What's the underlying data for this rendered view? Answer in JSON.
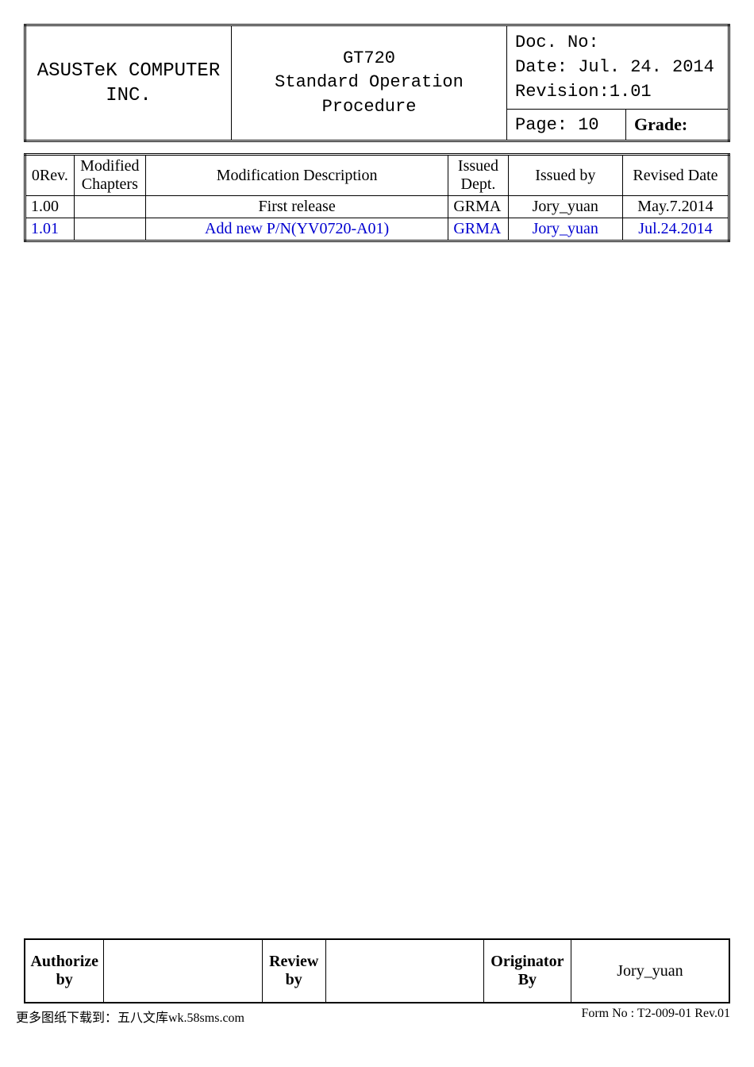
{
  "header": {
    "company_line1": "ASUSTeK COMPUTER",
    "company_line2": "INC.",
    "title_line1": "GT720",
    "title_line2": "Standard Operation Procedure",
    "doc_no_label": "Doc. No:",
    "date_line": "Date: Jul. 24. 2014",
    "revision_line": "Revision:1.01",
    "page_label": "Page: 10",
    "grade_label": "Grade:"
  },
  "rev_headers": {
    "rev": "0Rev.",
    "modchap": "Modified Chapters",
    "desc": "Modification Description",
    "dept": "Issued Dept.",
    "by": "Issued by",
    "date": "Revised Date"
  },
  "rev_rows": [
    {
      "rev": "1.00",
      "modchap": "",
      "desc": "First release",
      "dept": "GRMA",
      "by": "Jory_yuan",
      "date": "May.7.2014",
      "color": "#000000"
    },
    {
      "rev": "1.01",
      "modchap": "",
      "desc": "Add new P/N(YV0720-A01)",
      "dept": "GRMA",
      "by": "Jory_yuan",
      "date": "Jul.24.2014",
      "color": "#0000d0"
    }
  ],
  "footer": {
    "auth_label": "Authorize by",
    "auth_val": "",
    "review_label": "Review by",
    "review_val": "",
    "orig_label": "Originator By",
    "orig_val": "Jory_yuan"
  },
  "bottom": {
    "left": "更多图纸下载到：五八文库wk.58sms.com",
    "right": "Form No : T2-009-01 Rev.01"
  }
}
